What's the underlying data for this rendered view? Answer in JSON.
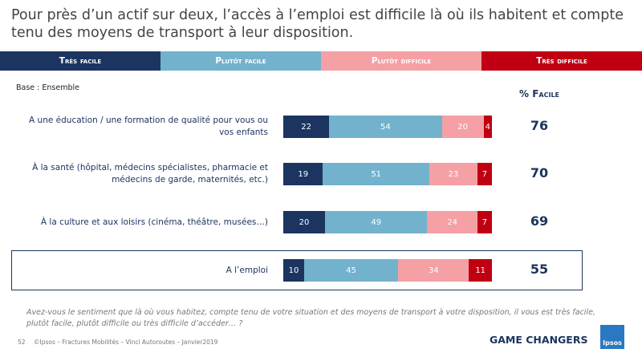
{
  "chart_data": {
    "type": "bar",
    "orientation": "horizontal",
    "stacked": true,
    "title": "Pour près d’un actif sur deux, l’accès à l’emploi est difficile là où ils habitent et compte tenu des moyens de transport à leur disposition.",
    "subtitle": "Base : Ensemble",
    "categories": [
      "A une éducation / une formation de qualité pour vous ou vos enfants",
      "À la santé (hôpital, médecins spécialistes, pharmacie et médecins de garde, maternités, etc.)",
      "À la culture et aux loisirs (cinéma, théâtre, musées…)",
      "A l’emploi"
    ],
    "series": [
      {
        "name": "Très facile",
        "color": "#1c3560",
        "values": [
          22,
          19,
          20,
          10
        ]
      },
      {
        "name": "Plutôt facile",
        "color": "#73b2cc",
        "values": [
          54,
          51,
          49,
          45
        ]
      },
      {
        "name": "Plutôt difficile",
        "color": "#f5a0a5",
        "values": [
          20,
          23,
          24,
          34
        ]
      },
      {
        "name": "Très difficile",
        "color": "#c00012",
        "values": [
          4,
          7,
          7,
          11
        ]
      }
    ],
    "xlim": [
      0,
      100
    ],
    "highlight": 3,
    "facile": {
      "label": "% Facile",
      "values": [
        76,
        70,
        69,
        55
      ]
    },
    "question": "Avez-vous le sentiment que là où vous habitez, compte tenu de votre situation et des moyens de transport à votre disposition, il vous est très facile, plutôt facile, plutôt difficile ou très difficile d’accéder… ?",
    "page_number": "52",
    "footer": "©Ipsos – Fractures Mobilités – Vinci Autoroutes – Janvier2019",
    "tagline": "GAME CHANGERS",
    "logo": "Ipsos"
  }
}
